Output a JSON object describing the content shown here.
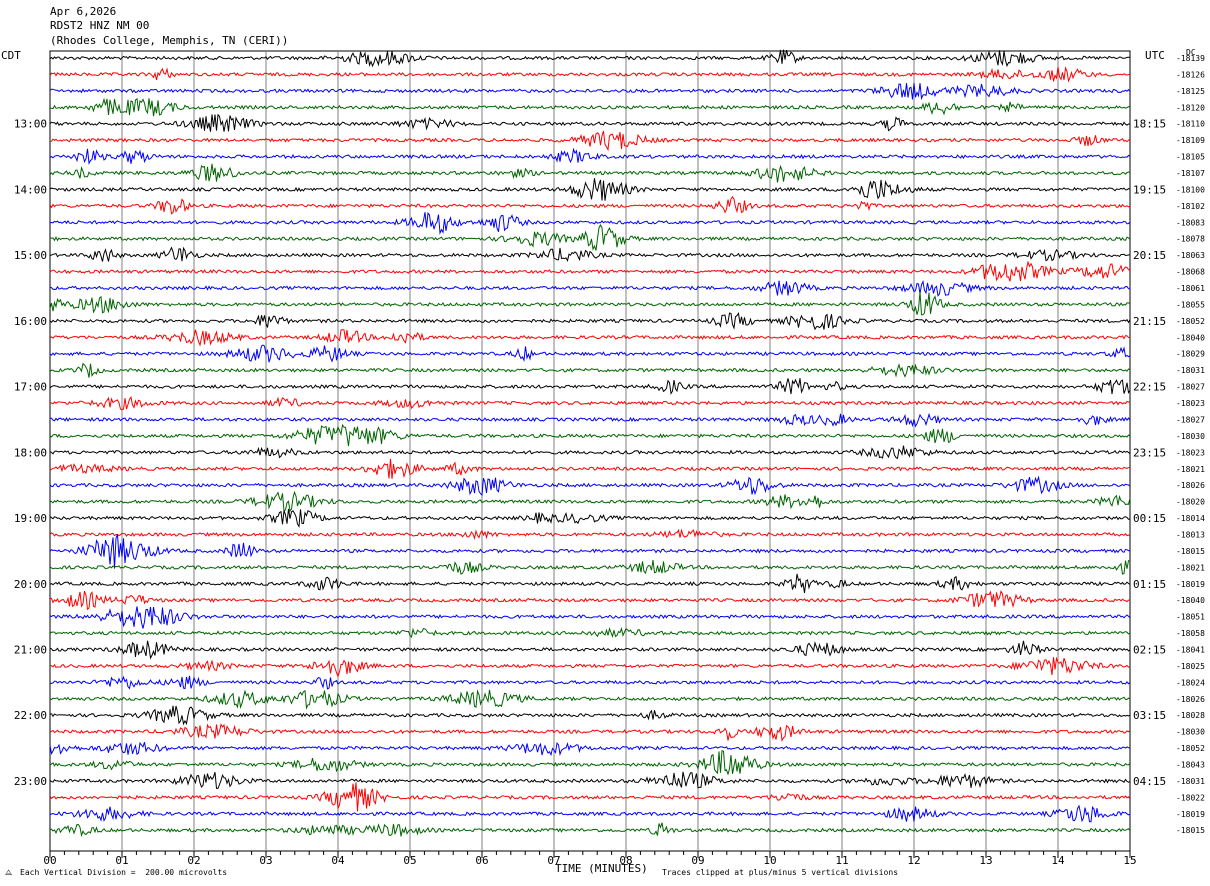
{
  "header": {
    "date": "Apr 6,2026",
    "station": "RDST2 HNZ NM 00",
    "location": "(Rhodes College, Memphis, TN (CERI))"
  },
  "left_zone": "CDT",
  "right_zone": "UTC",
  "dc_label": "DC",
  "footer": {
    "scale_note": "Each Vertical Division =  200.00 microvolts",
    "xlabel": "TIME (MINUTES)",
    "clip_note": "Traces clipped at plus/minus 5 vertical divisions"
  },
  "colors": {
    "cycle": [
      "#000000",
      "#ff0000",
      "#0000ff",
      "#006400"
    ],
    "grid": "#808080"
  },
  "chart_data": {
    "type": "line",
    "title": "RDST2 HNZ NM 00",
    "xlabel": "TIME (MINUTES)",
    "xlim": [
      0,
      15
    ],
    "x_ticks": [
      "00",
      "01",
      "02",
      "03",
      "04",
      "05",
      "06",
      "07",
      "08",
      "09",
      "10",
      "11",
      "12",
      "13",
      "14",
      "15"
    ],
    "left_hour_labels": [
      "13:00",
      "14:00",
      "15:00",
      "16:00",
      "17:00",
      "18:00",
      "19:00",
      "20:00",
      "21:00",
      "22:00",
      "23:00"
    ],
    "right_hour_labels": [
      "18:15",
      "19:15",
      "20:15",
      "21:15",
      "22:15",
      "23:15",
      "00:15",
      "01:15",
      "02:15",
      "03:15",
      "04:15"
    ],
    "first_labeled_trace": 4,
    "trace_count": 48,
    "dc_offsets": [
      "-18139",
      "-18126",
      "-18125",
      "-18120",
      "-18110",
      "-18109",
      "-18105",
      "-18107",
      "-18100",
      "-18102",
      "-18083",
      "-18078",
      "-18063",
      "-18068",
      "-18061",
      "-18055",
      "-18052",
      "-18040",
      "-18029",
      "-18031",
      "-18027",
      "-18023",
      "-18027",
      "-18030",
      "-18023",
      "-18021",
      "-18026",
      "-18020",
      "-18014",
      "-18013",
      "-18015",
      "-18021",
      "-18019",
      "-18040",
      "-18051",
      "-18058",
      "-18041",
      "-18025",
      "-18024",
      "-18026",
      "-18028",
      "-18030",
      "-18052",
      "-18043",
      "-18031",
      "-18022",
      "-18019",
      "-18015"
    ]
  }
}
